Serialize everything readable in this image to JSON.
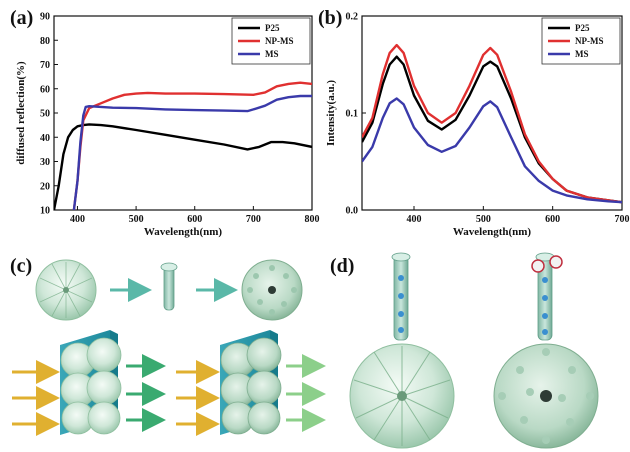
{
  "panels": {
    "a": "(a)",
    "b": "(b)",
    "c": "(c)",
    "d": "(d)"
  },
  "chart_data": [
    {
      "id": "a",
      "type": "line",
      "xlabel": "Wavelength(nm)",
      "ylabel": "diffused reflection(%)",
      "xlim": [
        360,
        800
      ],
      "ylim": [
        10,
        90
      ],
      "xticks": [
        400,
        500,
        600,
        700,
        800
      ],
      "yticks": [
        10,
        20,
        30,
        40,
        50,
        60,
        70,
        80,
        90
      ],
      "legend_position": "top-right",
      "series": [
        {
          "name": "P25",
          "color": "#000000",
          "x": [
            360,
            368,
            376,
            384,
            392,
            400,
            410,
            420,
            440,
            460,
            500,
            550,
            600,
            650,
            690,
            710,
            730,
            750,
            770,
            800
          ],
          "y": [
            10,
            20,
            33,
            40,
            43,
            44.5,
            45,
            45.3,
            45,
            44.5,
            43,
            41,
            39,
            37,
            35,
            36,
            38,
            38,
            37.5,
            36
          ]
        },
        {
          "name": "NP-MS",
          "color": "#e03030",
          "x": [
            394,
            400,
            405,
            410,
            420,
            440,
            460,
            480,
            500,
            520,
            550,
            600,
            650,
            700,
            720,
            740,
            760,
            780,
            800
          ],
          "y": [
            10,
            22,
            36,
            47,
            52,
            54,
            56,
            57.5,
            58,
            58.3,
            58,
            58,
            57.8,
            57.5,
            58.5,
            61,
            62,
            62.5,
            62
          ]
        },
        {
          "name": "MS",
          "color": "#3a3aaa",
          "x": [
            394,
            400,
            405,
            410,
            414,
            420,
            440,
            460,
            500,
            550,
            600,
            650,
            690,
            700,
            720,
            740,
            760,
            780,
            800
          ],
          "y": [
            10,
            22,
            38,
            49,
            52.5,
            52.8,
            52.5,
            52.2,
            52,
            51.5,
            51.2,
            51,
            50.8,
            51.5,
            53,
            55.5,
            56.5,
            57,
            57
          ]
        }
      ]
    },
    {
      "id": "b",
      "type": "line",
      "xlabel": "Wavelength(nm)",
      "ylabel": "Intensity(a.u.)",
      "xlim": [
        325,
        700
      ],
      "ylim": [
        0.0,
        0.2
      ],
      "xticks": [
        400,
        500,
        600,
        700
      ],
      "yticks": [
        0.0,
        0.1,
        0.2
      ],
      "legend_position": "top-right",
      "series": [
        {
          "name": "P25",
          "color": "#000000",
          "x": [
            325,
            340,
            355,
            365,
            375,
            385,
            400,
            420,
            440,
            460,
            480,
            500,
            510,
            520,
            540,
            560,
            580,
            600,
            620,
            650,
            680,
            700
          ],
          "y": [
            0.07,
            0.09,
            0.13,
            0.15,
            0.158,
            0.15,
            0.118,
            0.092,
            0.083,
            0.093,
            0.118,
            0.148,
            0.153,
            0.148,
            0.115,
            0.075,
            0.048,
            0.032,
            0.02,
            0.013,
            0.01,
            0.008
          ]
        },
        {
          "name": "NP-MS",
          "color": "#e03030",
          "x": [
            325,
            340,
            355,
            365,
            375,
            385,
            400,
            420,
            440,
            460,
            480,
            500,
            510,
            520,
            540,
            560,
            580,
            600,
            620,
            650,
            680,
            700
          ],
          "y": [
            0.075,
            0.095,
            0.14,
            0.162,
            0.17,
            0.162,
            0.128,
            0.1,
            0.09,
            0.1,
            0.128,
            0.16,
            0.167,
            0.16,
            0.122,
            0.078,
            0.05,
            0.032,
            0.02,
            0.013,
            0.01,
            0.008
          ]
        },
        {
          "name": "MS",
          "color": "#3a3aaa",
          "x": [
            325,
            340,
            355,
            365,
            375,
            385,
            400,
            420,
            440,
            460,
            480,
            500,
            510,
            520,
            540,
            560,
            580,
            600,
            620,
            650,
            680,
            700
          ],
          "y": [
            0.05,
            0.065,
            0.095,
            0.11,
            0.115,
            0.109,
            0.085,
            0.067,
            0.06,
            0.066,
            0.085,
            0.107,
            0.112,
            0.106,
            0.075,
            0.045,
            0.03,
            0.02,
            0.015,
            0.011,
            0.009,
            0.008
          ]
        }
      ]
    }
  ]
}
